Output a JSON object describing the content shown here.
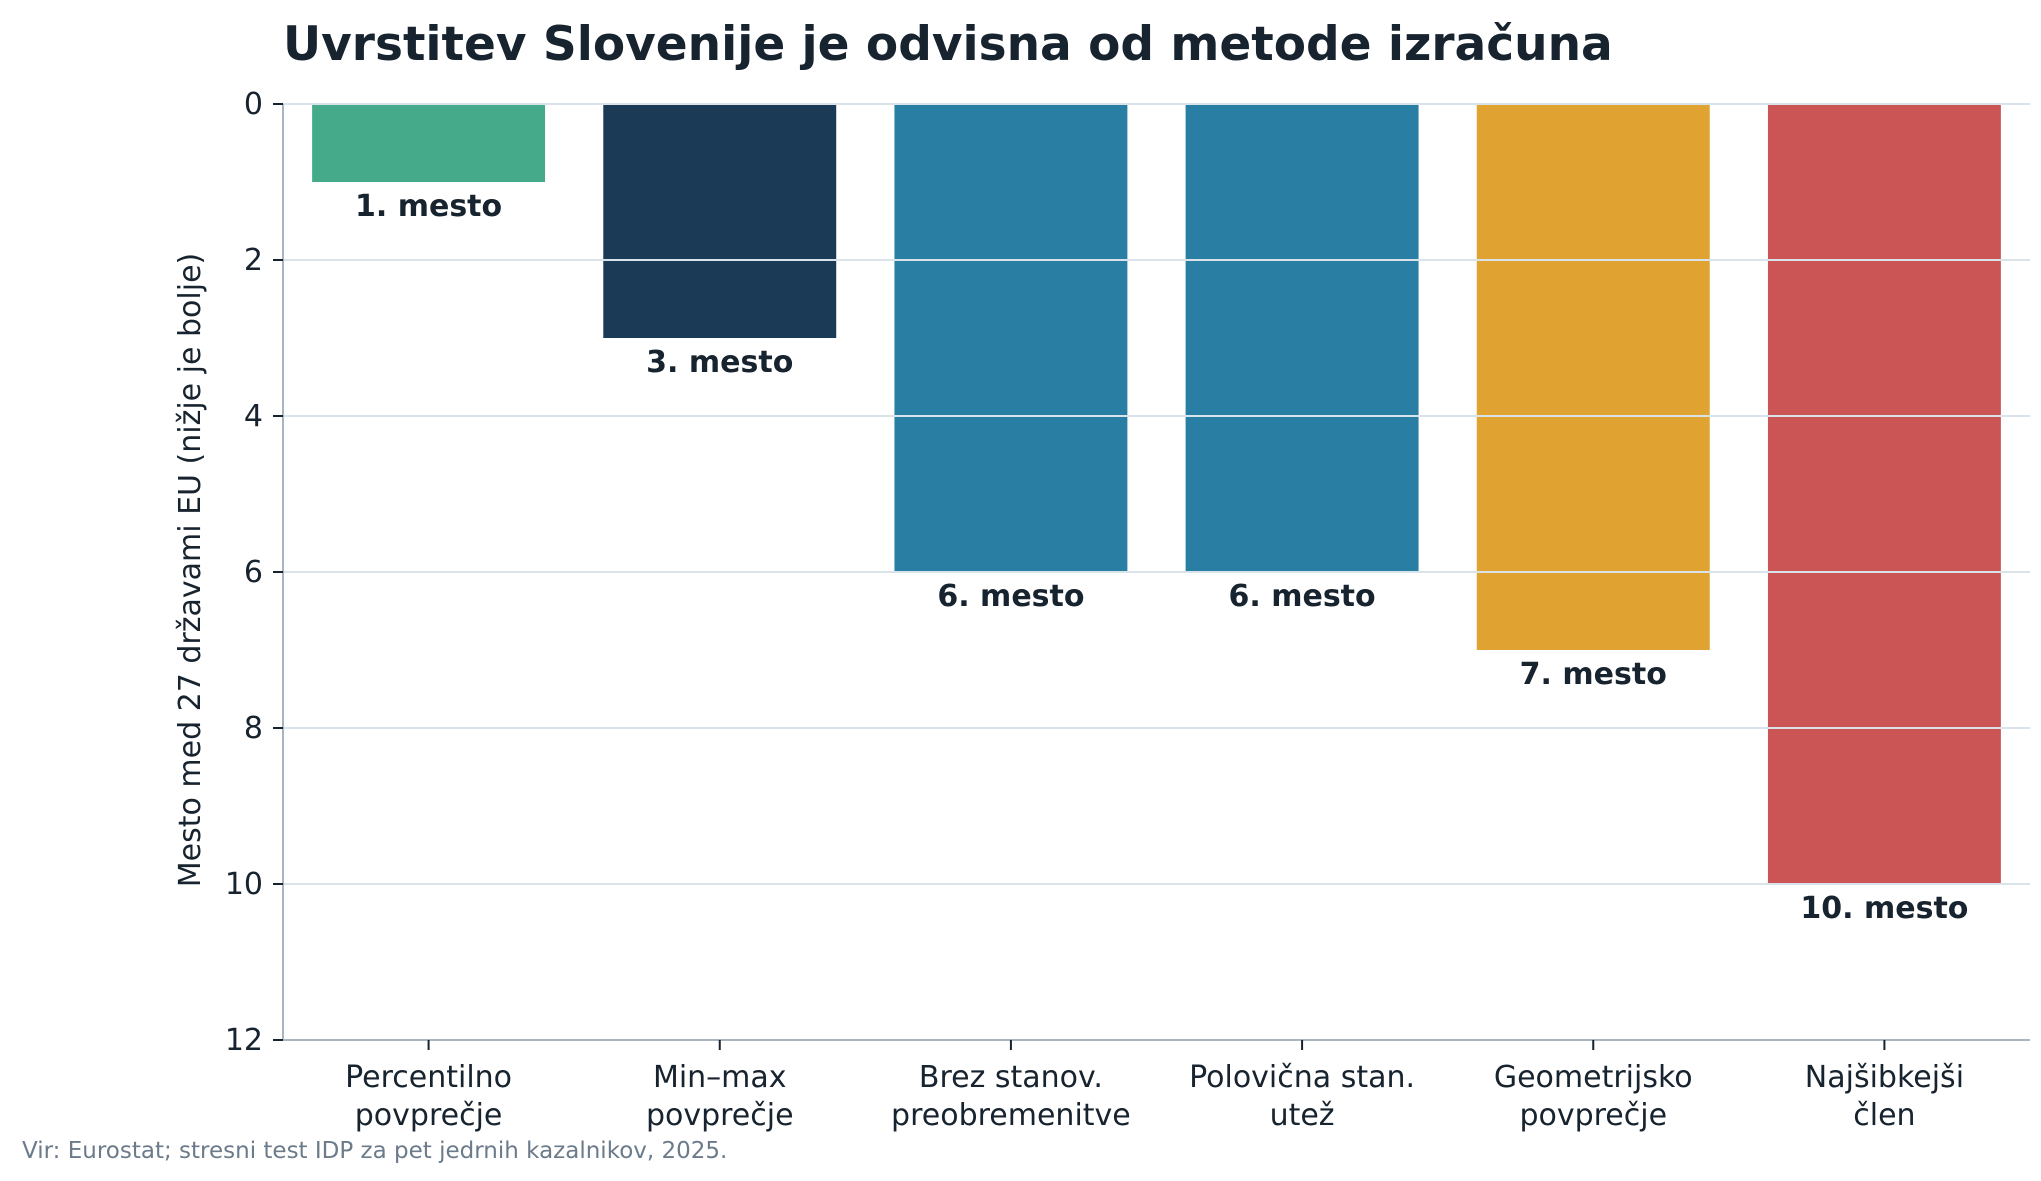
{
  "chart_data": {
    "type": "bar",
    "title": "Uvrstitev Slovenije je odvisna od metode izračuna",
    "ylabel": "Mesto med 27 državami EU (nižje je bolje)",
    "xlabel": "",
    "ylim": [
      0,
      12
    ],
    "y_inverted": true,
    "yticks": [
      0,
      2,
      4,
      6,
      8,
      10,
      12
    ],
    "grid": "horizontal",
    "categories": [
      [
        "Percentilno",
        "povprečje"
      ],
      [
        "Min–max",
        "povprečje"
      ],
      [
        "Brez stanov.",
        "preobremenitve"
      ],
      [
        "Polovična stan.",
        "utež"
      ],
      [
        "Geometrijsko",
        "povprečje"
      ],
      [
        "Najšibkejši",
        "člen"
      ]
    ],
    "values": [
      1,
      3,
      6,
      6,
      7,
      10
    ],
    "data_labels": [
      "1. mesto",
      "3. mesto",
      "6. mesto",
      "6. mesto",
      "7. mesto",
      "10. mesto"
    ],
    "colors": [
      "#45aa8a",
      "#1a3a56",
      "#287ea3",
      "#287ea3",
      "#e0a230",
      "#cb5555"
    ],
    "source": "Vir: Eurostat; stresni test IDP za pet jedrnih kazalnikov, 2025."
  }
}
